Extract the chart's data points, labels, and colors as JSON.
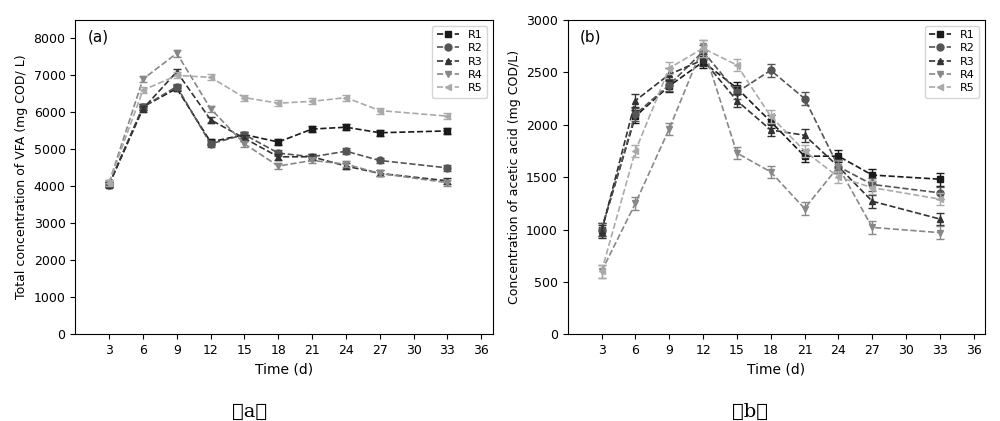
{
  "time_a": [
    3,
    6,
    9,
    12,
    15,
    18,
    21,
    24,
    27,
    33
  ],
  "time_b": [
    3,
    6,
    9,
    12,
    15,
    18,
    21,
    24,
    27,
    33
  ],
  "vfa_R1": [
    4050,
    6150,
    6650,
    5200,
    5400,
    5200,
    5550,
    5600,
    5450,
    5500
  ],
  "vfa_R2": [
    4050,
    6150,
    6700,
    5150,
    5400,
    4900,
    4800,
    4950,
    4700,
    4500
  ],
  "vfa_R3": [
    4050,
    6100,
    7100,
    5800,
    5300,
    4800,
    4800,
    4550,
    4350,
    4150
  ],
  "vfa_R4": [
    4100,
    6900,
    7600,
    6100,
    5150,
    4550,
    4700,
    4600,
    4350,
    4100
  ],
  "vfa_R5": [
    4100,
    6600,
    7000,
    6950,
    6400,
    6250,
    6300,
    6400,
    6050,
    5900
  ],
  "vfa_err_R1": [
    80,
    80,
    80,
    80,
    80,
    80,
    80,
    80,
    80,
    80
  ],
  "vfa_err_R2": [
    80,
    80,
    80,
    80,
    80,
    80,
    80,
    80,
    80,
    80
  ],
  "vfa_err_R3": [
    80,
    80,
    80,
    80,
    80,
    80,
    80,
    80,
    80,
    80
  ],
  "vfa_err_R4": [
    80,
    80,
    100,
    80,
    80,
    80,
    80,
    80,
    80,
    80
  ],
  "vfa_err_R5": [
    80,
    80,
    80,
    80,
    80,
    80,
    80,
    80,
    80,
    80
  ],
  "aa_R1": [
    1000,
    2080,
    2370,
    2600,
    2350,
    2030,
    1700,
    1700,
    1520,
    1480
  ],
  "aa_R2": [
    1000,
    2100,
    2380,
    2700,
    2310,
    2520,
    2250,
    1600,
    1430,
    1350
  ],
  "aa_R3": [
    980,
    2230,
    2480,
    2620,
    2230,
    1950,
    1900,
    1600,
    1270,
    1100
  ],
  "aa_R4": [
    600,
    1250,
    1960,
    2750,
    1730,
    1550,
    1200,
    1600,
    1020,
    970
  ],
  "aa_R5": [
    600,
    1750,
    2540,
    2730,
    2570,
    2080,
    1750,
    1500,
    1400,
    1290
  ],
  "aa_err_R1": [
    60,
    60,
    60,
    60,
    60,
    60,
    60,
    60,
    60,
    60
  ],
  "aa_err_R2": [
    60,
    60,
    60,
    60,
    60,
    60,
    60,
    60,
    60,
    60
  ],
  "aa_err_R3": [
    60,
    60,
    60,
    60,
    60,
    60,
    60,
    60,
    60,
    60
  ],
  "aa_err_R4": [
    60,
    60,
    60,
    60,
    60,
    60,
    60,
    60,
    60,
    60
  ],
  "aa_err_R5": [
    60,
    60,
    60,
    80,
    60,
    60,
    60,
    60,
    60,
    60
  ],
  "gray_shades": {
    "R1": "#1a1a1a",
    "R2": "#555555",
    "R3": "#333333",
    "R4": "#888888",
    "R5": "#aaaaaa"
  },
  "markers": {
    "R1": "s",
    "R2": "o",
    "R3": "^",
    "R4": "v",
    "R5": "<"
  },
  "ylabel_a": "Total concentration of VFA (mg COD/ L)",
  "ylabel_b": "Concentration of acetic acid (mg COD/L)",
  "xlabel": "Time (d)",
  "ylim_a": [
    0,
    8500
  ],
  "ylim_b": [
    0,
    3000
  ],
  "yticks_a": [
    0,
    1000,
    2000,
    3000,
    4000,
    5000,
    6000,
    7000,
    8000
  ],
  "yticks_b": [
    0,
    500,
    1000,
    1500,
    2000,
    2500,
    3000
  ],
  "xticks": [
    3,
    6,
    9,
    12,
    15,
    18,
    21,
    24,
    27,
    30,
    33,
    36
  ],
  "xlim": [
    0,
    37
  ],
  "panel_a": "(a)",
  "panel_b": "(b)",
  "caption_a": "（a）",
  "caption_b": "（b）",
  "series": [
    "R1",
    "R2",
    "R3",
    "R4",
    "R5"
  ]
}
